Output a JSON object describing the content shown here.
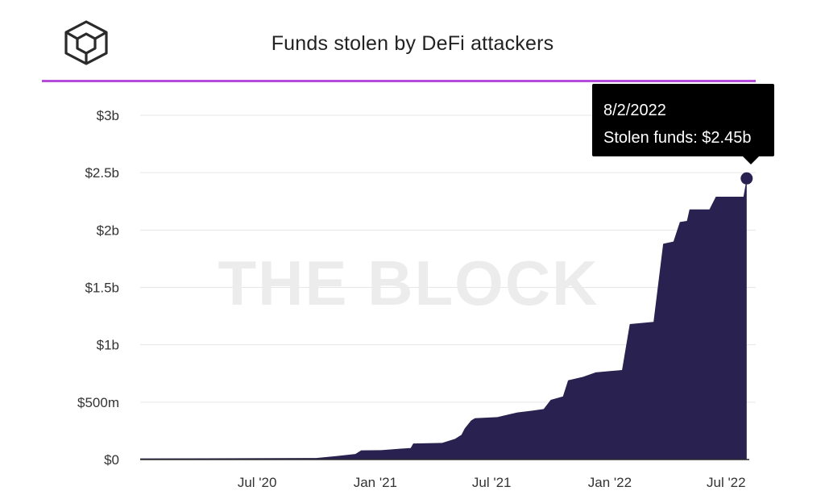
{
  "header": {
    "title": "Funds stolen by DeFi attackers",
    "logo_icon": "the-block-cube-logo-icon",
    "accent_color": "#b44bd9"
  },
  "watermark": "THE BLOCK",
  "tooltip": {
    "date": "8/2/2022",
    "text": "Stolen funds: $2.45b"
  },
  "colors": {
    "area": "#29214f",
    "grid": "#e6e6e6"
  },
  "chart_data": {
    "type": "area",
    "title": "Funds stolen by DeFi attackers",
    "xlabel": "",
    "ylabel": "",
    "y_ticks": [
      {
        "value": 0,
        "label": "$0"
      },
      {
        "value": 500,
        "label": "$500m"
      },
      {
        "value": 1000,
        "label": "$1b"
      },
      {
        "value": 1500,
        "label": "$1.5b"
      },
      {
        "value": 2000,
        "label": "$2b"
      },
      {
        "value": 2500,
        "label": "$2.5b"
      },
      {
        "value": 3000,
        "label": "$3b"
      }
    ],
    "x_ticks": [
      {
        "date": "2020-07-01",
        "label": "Jul '20"
      },
      {
        "date": "2021-01-01",
        "label": "Jan '21"
      },
      {
        "date": "2021-07-01",
        "label": "Jul '21"
      },
      {
        "date": "2022-01-01",
        "label": "Jan '22"
      },
      {
        "date": "2022-07-01",
        "label": "Jul '22"
      }
    ],
    "ylim": [
      0,
      3000
    ],
    "xlim": [
      "2020-01-01",
      "2022-08-06"
    ],
    "unit": "USD millions",
    "grid": true,
    "series": [
      {
        "name": "Stolen funds",
        "points": [
          [
            "2020-01-01",
            10
          ],
          [
            "2020-06-01",
            11
          ],
          [
            "2020-10-01",
            13
          ],
          [
            "2020-11-01",
            30
          ],
          [
            "2020-12-01",
            48
          ],
          [
            "2020-12-10",
            80
          ],
          [
            "2021-01-10",
            82
          ],
          [
            "2021-02-10",
            95
          ],
          [
            "2021-02-25",
            100
          ],
          [
            "2021-03-01",
            140
          ],
          [
            "2021-04-15",
            145
          ],
          [
            "2021-05-05",
            180
          ],
          [
            "2021-05-15",
            215
          ],
          [
            "2021-05-20",
            270
          ],
          [
            "2021-05-30",
            340
          ],
          [
            "2021-06-05",
            360
          ],
          [
            "2021-07-10",
            370
          ],
          [
            "2021-08-10",
            410
          ],
          [
            "2021-09-01",
            425
          ],
          [
            "2021-09-20",
            440
          ],
          [
            "2021-10-01",
            520
          ],
          [
            "2021-10-20",
            550
          ],
          [
            "2021-10-28",
            690
          ],
          [
            "2021-11-20",
            720
          ],
          [
            "2021-12-10",
            760
          ],
          [
            "2022-01-20",
            780
          ],
          [
            "2022-02-01",
            1180
          ],
          [
            "2022-03-10",
            1200
          ],
          [
            "2022-03-25",
            1880
          ],
          [
            "2022-04-10",
            1900
          ],
          [
            "2022-04-20",
            2070
          ],
          [
            "2022-05-01",
            2080
          ],
          [
            "2022-05-05",
            2180
          ],
          [
            "2022-06-05",
            2180
          ],
          [
            "2022-06-15",
            2290
          ],
          [
            "2022-07-28",
            2290
          ],
          [
            "2022-08-02",
            2450
          ]
        ]
      }
    ],
    "highlight": {
      "date": "2022-08-02",
      "value": 2450,
      "label": "Stolen funds: $2.45b"
    }
  }
}
